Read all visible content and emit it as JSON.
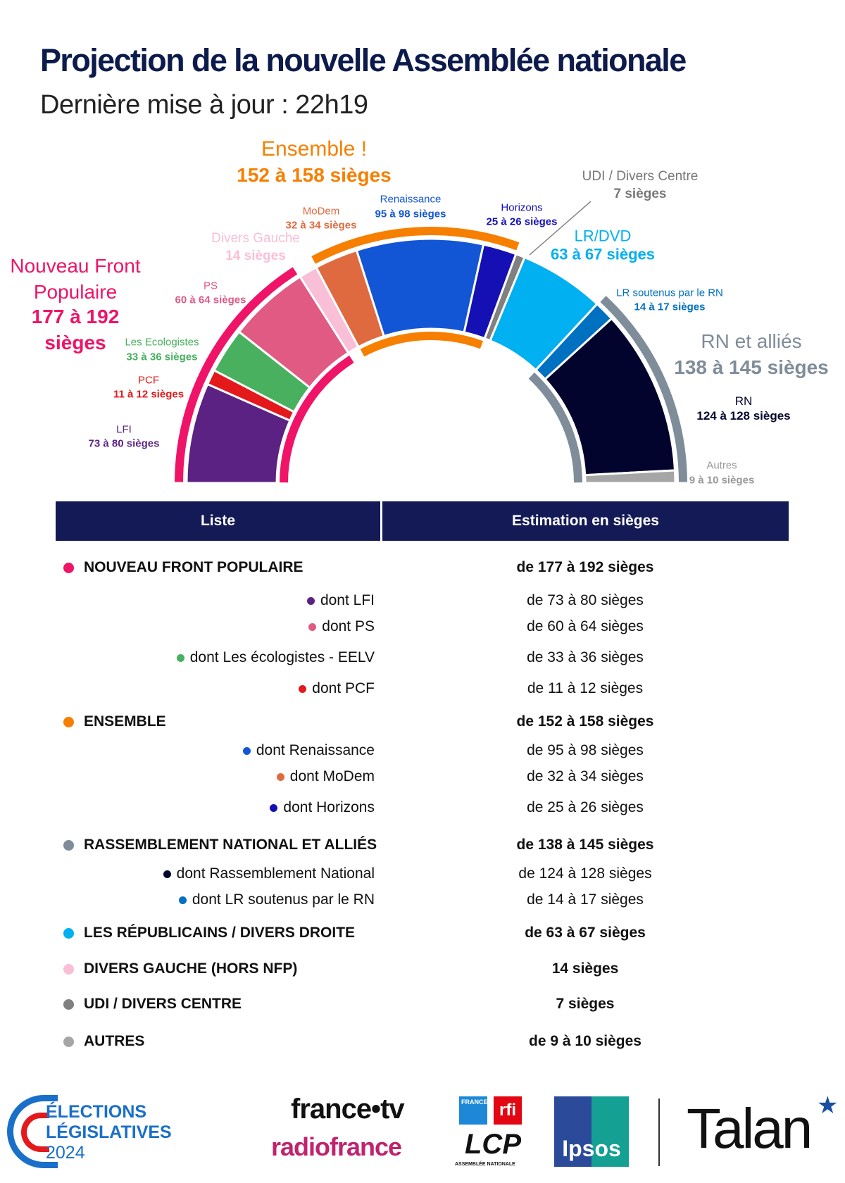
{
  "title": "Projection de la nouvelle Assemblée nationale",
  "subtitle": "Dernière mise à jour : 22h19",
  "chart_data": {
    "type": "hemicycle",
    "unit": "sièges",
    "segments": [
      {
        "name": "LFI",
        "label": "73 à 80 sièges",
        "min": 73,
        "max": 80,
        "color": "#5b2183"
      },
      {
        "name": "PCF",
        "label": "11 à 12 sièges",
        "min": 11,
        "max": 12,
        "color": "#e3191c"
      },
      {
        "name": "Les Ecologistes",
        "label": "33 à 36 sièges",
        "min": 33,
        "max": 36,
        "color": "#48b05e"
      },
      {
        "name": "PS",
        "label": "60 à 64 sièges",
        "min": 60,
        "max": 64,
        "color": "#e05a84"
      },
      {
        "name": "Divers Gauche",
        "label": "14 sièges",
        "min": 14,
        "max": 14,
        "color": "#f9bfd6"
      },
      {
        "name": "MoDem",
        "label": "32 à 34 sièges",
        "min": 32,
        "max": 34,
        "color": "#e06a3f"
      },
      {
        "name": "Renaissance",
        "label": "95 à 98 sièges",
        "min": 95,
        "max": 98,
        "color": "#1256d6"
      },
      {
        "name": "Horizons",
        "label": "25 à 26 sièges",
        "min": 25,
        "max": 26,
        "color": "#1410b4"
      },
      {
        "name": "UDI / Divers Centre",
        "label": "7 sièges",
        "min": 7,
        "max": 7,
        "color": "#808080"
      },
      {
        "name": "LR/DVD",
        "label": "63 à 67 sièges",
        "min": 63,
        "max": 67,
        "color": "#00b0f0"
      },
      {
        "name": "LR soutenus par le RN",
        "label": "14 à 17 sièges",
        "min": 14,
        "max": 17,
        "color": "#0070c0"
      },
      {
        "name": "RN",
        "label": "124 à 128 sièges",
        "min": 124,
        "max": 128,
        "color": "#03042e"
      },
      {
        "name": "Autres",
        "label": "9 à 10 sièges",
        "min": 9,
        "max": 10,
        "color": "#a6a6a6"
      }
    ],
    "blocs": [
      {
        "name": "Nouveau Front Populaire",
        "name_line1": "Nouveau Front",
        "name_line2": "Populaire",
        "label_line1": "177 à 192",
        "label_line2": "sièges",
        "from": 0,
        "to": 3,
        "color": "#ef1467"
      },
      {
        "name": "Ensemble !",
        "label": "152 à 158 sièges",
        "from": 5,
        "to": 7,
        "color": "#f77f00"
      },
      {
        "name": "RN et alliés",
        "label": "138 à 145 sièges",
        "from": 10,
        "to": 12,
        "color": "#7f8c99"
      }
    ]
  },
  "table": {
    "headers": [
      "Liste",
      "Estimation en sièges"
    ],
    "rows": [
      {
        "label": "NOUVEAU FRONT POPULAIRE",
        "value": "de 177 à 192 sièges",
        "main": true,
        "color": "#ef1467"
      },
      {
        "label": "dont LFI",
        "value": "de 73 à 80 sièges",
        "color": "#5b2183"
      },
      {
        "label": "dont PS",
        "value": "de 60 à 64 sièges",
        "color": "#e05a84"
      },
      {
        "label": "dont Les écologistes - EELV",
        "value": "de 33 à 36 sièges",
        "color": "#48b05e"
      },
      {
        "label": "dont PCF",
        "value": "de 11 à 12 sièges",
        "color": "#e3191c"
      },
      {
        "label": "ENSEMBLE",
        "value": "de 152 à 158 sièges",
        "main": true,
        "color": "#f77f00"
      },
      {
        "label": "dont Renaissance",
        "value": "de 95 à 98 sièges",
        "color": "#1256d6"
      },
      {
        "label": "dont MoDem",
        "value": "de 32 à 34 sièges",
        "color": "#e06a3f"
      },
      {
        "label": "dont Horizons",
        "value": "de 25 à 26 sièges",
        "color": "#1410b4"
      },
      {
        "label": "RASSEMBLEMENT NATIONAL ET ALLIÉS",
        "value": "de 138 à 145 sièges",
        "main": true,
        "color": "#7f8c99"
      },
      {
        "label": "dont Rassemblement National",
        "value": "de 124 à 128 sièges",
        "color": "#03042e"
      },
      {
        "label": "dont LR soutenus par le RN",
        "value": "de 14 à 17 sièges",
        "color": "#0070c0"
      },
      {
        "label": "LES RÉPUBLICAINS / DIVERS DROITE",
        "value": "de 63 à 67 sièges",
        "main": true,
        "color": "#00b0f0"
      },
      {
        "label": "DIVERS GAUCHE (HORS NFP)",
        "value": "14 sièges",
        "main": true,
        "color": "#f9bfd6"
      },
      {
        "label": "UDI / DIVERS CENTRE",
        "value": "7 sièges",
        "main": true,
        "color": "#808080"
      },
      {
        "label": "AUTRES",
        "value": "de 9 à 10 sièges",
        "main": true,
        "color": "#a6a6a6"
      }
    ]
  },
  "footer": {
    "elections": [
      "ÉLECTIONS",
      "LÉGISLATIVES",
      "2024"
    ],
    "francetv": "france•tv",
    "radiofrance": "radiofrance",
    "france24": "FRANCE 24",
    "rfi": "rfi",
    "lcp": "LCP",
    "lcp_sub": "ASSEMBLÉE NATIONALE",
    "ipsos": "Ipsos",
    "talan": "Talan"
  }
}
